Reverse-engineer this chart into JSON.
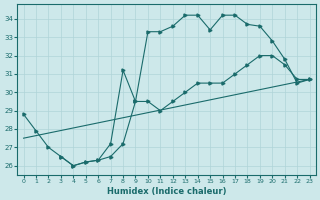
{
  "xlabel": "Humidex (Indice chaleur)",
  "xlim": [
    -0.5,
    23.5
  ],
  "ylim": [
    25.5,
    34.8
  ],
  "yticks": [
    26,
    27,
    28,
    29,
    30,
    31,
    32,
    33,
    34
  ],
  "xticks": [
    0,
    1,
    2,
    3,
    4,
    5,
    6,
    7,
    8,
    9,
    10,
    11,
    12,
    13,
    14,
    15,
    16,
    17,
    18,
    19,
    20,
    21,
    22,
    23
  ],
  "bg_color": "#cde8ea",
  "grid_color": "#b0d4d8",
  "line_color": "#1a6b6b",
  "line1_x": [
    0,
    1,
    2,
    3,
    4,
    5,
    6,
    7,
    8,
    9,
    10,
    11,
    12,
    13,
    14,
    15,
    16,
    17,
    18,
    19,
    20,
    21,
    22,
    23
  ],
  "line1_y": [
    28.8,
    27.9,
    27.0,
    26.5,
    26.0,
    26.2,
    26.3,
    26.5,
    27.2,
    29.5,
    33.3,
    33.3,
    33.6,
    34.2,
    34.2,
    33.4,
    34.2,
    34.2,
    33.7,
    33.6,
    32.8,
    31.8,
    30.5,
    30.7
  ],
  "line2_x": [
    0,
    23
  ],
  "line2_y": [
    27.5,
    30.7
  ],
  "line3_x": [
    3,
    4,
    5,
    6,
    7,
    8,
    9,
    10,
    11,
    12,
    13,
    14,
    15,
    16,
    17,
    18,
    19,
    20,
    21,
    22,
    23
  ],
  "line3_y": [
    26.5,
    26.0,
    26.2,
    26.3,
    27.2,
    31.2,
    29.5,
    29.5,
    29.0,
    29.5,
    30.0,
    30.5,
    30.5,
    30.5,
    31.0,
    31.5,
    32.0,
    32.0,
    31.5,
    30.7,
    30.7
  ],
  "tick_fontsize": 5,
  "xlabel_fontsize": 6
}
